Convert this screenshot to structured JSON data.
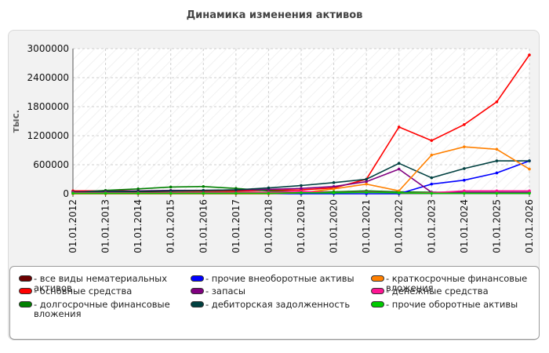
{
  "chart_data": {
    "type": "line",
    "title": "Динамика изменения активов",
    "ylabel": "тыс.",
    "xlabel": "",
    "ylim": [
      0,
      3000000
    ],
    "yticks": [
      "3000000",
      "2400000",
      "1800000",
      "1200000",
      "600000",
      "0"
    ],
    "x": [
      "01.01.2012",
      "01.01.2013",
      "01.01.2014",
      "01.01.2015",
      "01.01.2016",
      "01.01.2017",
      "01.01.2018",
      "01.01.2019",
      "01.01.2020",
      "01.01.2021",
      "01.01.2022",
      "01.01.2023",
      "01.01.2024",
      "01.01.2025",
      "01.01.2026"
    ],
    "grid": true,
    "legend_position": "bottom",
    "series": [
      {
        "name": "- все виды нематериальных активов",
        "color": "#6b0000",
        "values": [
          30000,
          30000,
          30000,
          30000,
          30000,
          30000,
          30000,
          30000,
          30000,
          30000,
          30000,
          30000,
          30000,
          30000,
          30000
        ]
      },
      {
        "name": "- основные средства",
        "color": "#ff0000",
        "values": [
          60000,
          60000,
          60000,
          60000,
          60000,
          60000,
          70000,
          80000,
          120000,
          300000,
          1380000,
          1100000,
          1430000,
          1900000,
          2870000
        ]
      },
      {
        "name": "- долгосрочные финансовые вложения",
        "color": "#008000",
        "values": [
          30000,
          70000,
          100000,
          140000,
          150000,
          110000,
          60000,
          40000,
          40000,
          60000,
          40000,
          30000,
          20000,
          20000,
          20000
        ]
      },
      {
        "name": "- прочие внеоборотные активы",
        "color": "#0000ff",
        "values": [
          0,
          0,
          0,
          0,
          0,
          0,
          0,
          0,
          0,
          0,
          0,
          200000,
          280000,
          430000,
          680000
        ]
      },
      {
        "name": "- запасы",
        "color": "#800080",
        "values": [
          40000,
          50000,
          60000,
          70000,
          70000,
          80000,
          90000,
          110000,
          150000,
          250000,
          510000,
          30000,
          30000,
          30000,
          30000
        ]
      },
      {
        "name": "- дебиторская задолженность",
        "color": "#004040",
        "values": [
          30000,
          40000,
          50000,
          60000,
          70000,
          80000,
          120000,
          170000,
          230000,
          300000,
          630000,
          330000,
          520000,
          680000,
          680000
        ]
      },
      {
        "name": "- краткосрочные финансовые вложения",
        "color": "#ff8000",
        "values": [
          0,
          0,
          0,
          0,
          0,
          0,
          0,
          20000,
          100000,
          200000,
          60000,
          800000,
          970000,
          920000,
          510000
        ]
      },
      {
        "name": "- денежные средства",
        "color": "#ff1493",
        "values": [
          20000,
          20000,
          20000,
          20000,
          20000,
          20000,
          30000,
          50000,
          20000,
          40000,
          20000,
          20000,
          60000,
          60000,
          60000
        ]
      },
      {
        "name": "- прочие оборотные активы",
        "color": "#00cc00",
        "values": [
          10000,
          10000,
          10000,
          10000,
          10000,
          10000,
          10000,
          20000,
          20000,
          30000,
          20000,
          10000,
          10000,
          10000,
          10000
        ]
      }
    ]
  }
}
